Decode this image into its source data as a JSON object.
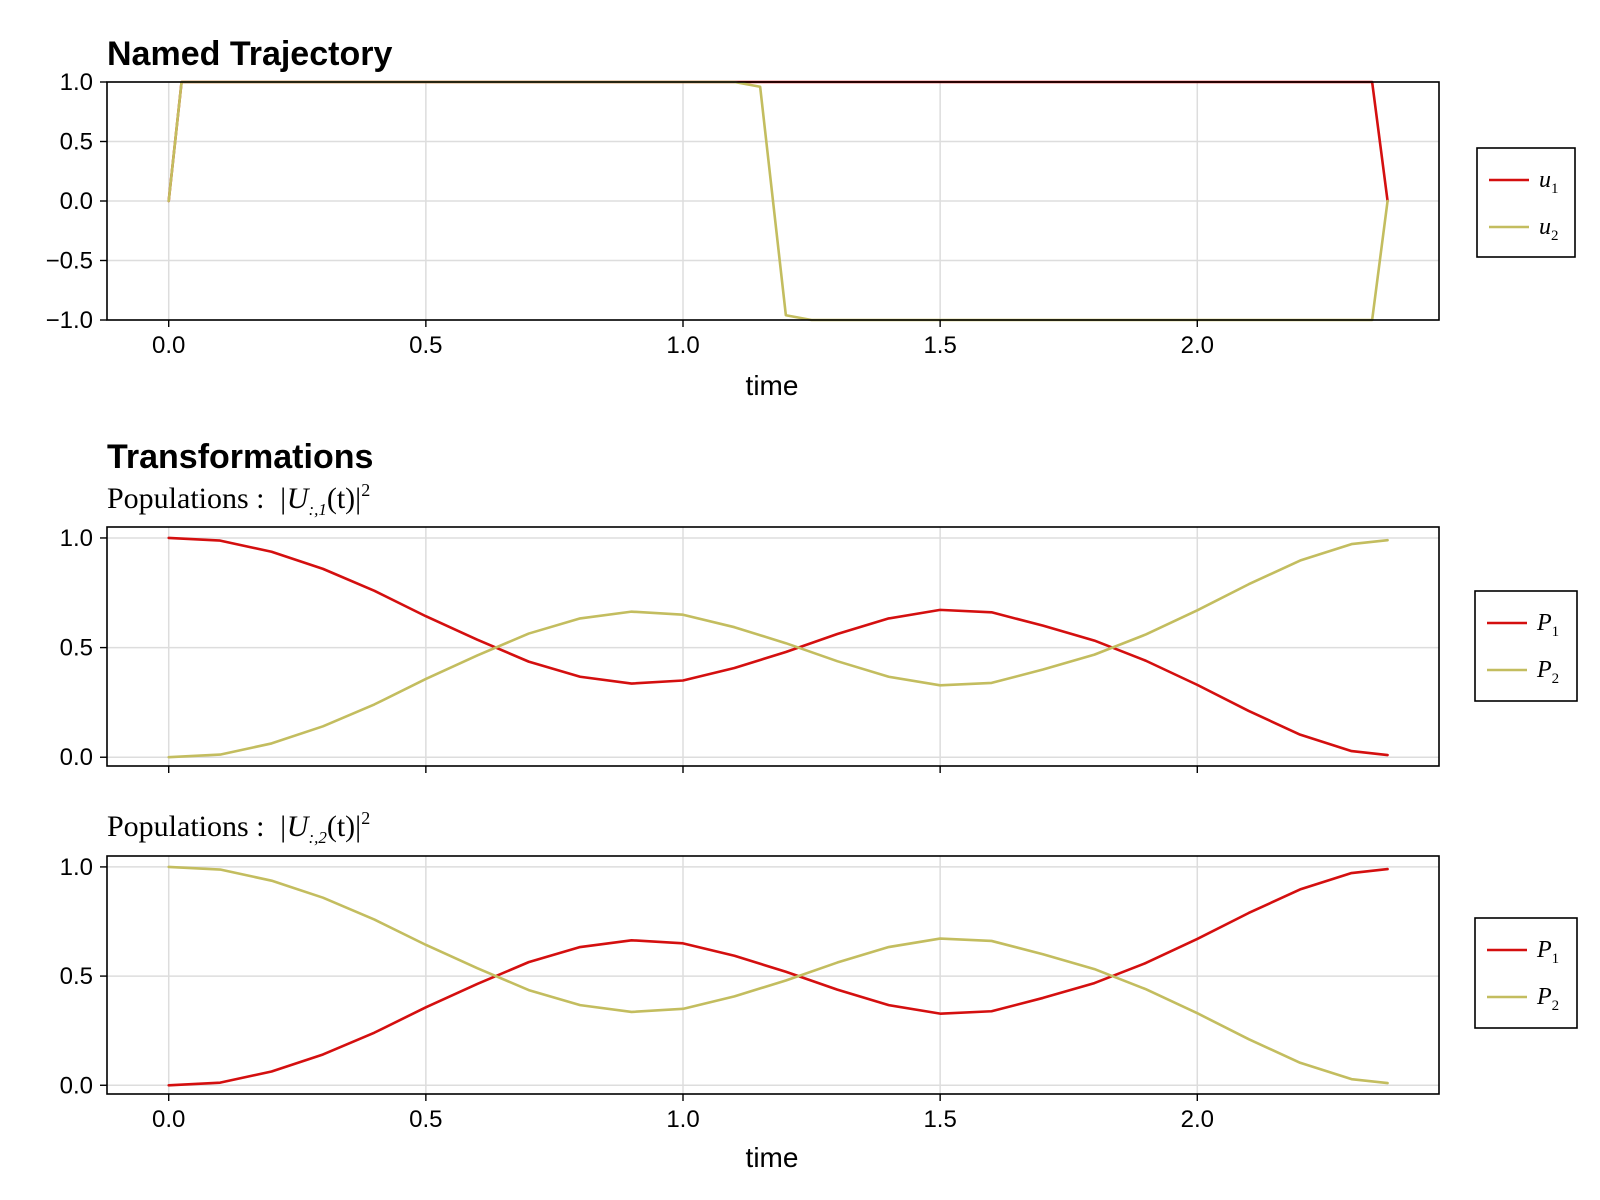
{
  "figure": {
    "section_titles": [
      "Named Trajectory",
      "Transformations"
    ]
  },
  "colors": {
    "red": "#d40f0f",
    "olive": "#c3bd5f"
  },
  "chart_data": [
    {
      "type": "line",
      "title": "Named Trajectory",
      "xlabel": "time",
      "xlim": [
        -0.12,
        2.47
      ],
      "ylim": [
        -1.0,
        1.0
      ],
      "xticks": [
        0.0,
        0.5,
        1.0,
        1.5,
        2.0
      ],
      "xtick_labels": [
        "0.0",
        "0.5",
        "1.0",
        "1.5",
        "2.0"
      ],
      "yticks": [
        1.0,
        0.5,
        0.0,
        -0.5,
        -1.0
      ],
      "ytick_labels": [
        "1.0",
        "0.5",
        "0.0",
        "−0.5",
        "−1.0"
      ],
      "grid": true,
      "legend": {
        "placement": "right",
        "entries": [
          {
            "base": "u",
            "sub": "1"
          },
          {
            "base": "u",
            "sub": "2"
          }
        ]
      },
      "series": [
        {
          "name": "u1",
          "color": "#d40f0f",
          "x": [
            0.0,
            0.025,
            0.05,
            1.1,
            1.15,
            2.32,
            2.34,
            2.37
          ],
          "y": [
            0.0,
            1.0,
            1.0,
            1.0,
            1.0,
            1.0,
            1.0,
            0.0
          ]
        },
        {
          "name": "u2",
          "color": "#c3bd5f",
          "x": [
            0.0,
            0.025,
            0.05,
            1.1,
            1.15,
            1.2,
            1.25,
            2.32,
            2.34,
            2.37
          ],
          "y": [
            0.0,
            1.0,
            1.0,
            1.0,
            0.96,
            -0.96,
            -1.0,
            -1.0,
            -1.0,
            0.0
          ]
        }
      ]
    },
    {
      "type": "line",
      "title": {
        "base": "Populations :",
        "expr": "|U",
        "sub": ":,1",
        "tail": "(t)|",
        "sup": "2"
      },
      "xlabel": "",
      "xlim": [
        -0.12,
        2.47
      ],
      "ylim": [
        -0.04,
        1.05
      ],
      "xticks": [
        0.0,
        0.5,
        1.0,
        1.5,
        2.0
      ],
      "yticks": [
        1.0,
        0.5,
        0.0
      ],
      "ytick_labels": [
        "1.0",
        "0.5",
        "0.0"
      ],
      "grid": true,
      "legend": {
        "placement": "right",
        "entries": [
          {
            "base": "P",
            "sub": "1"
          },
          {
            "base": "P",
            "sub": "2"
          }
        ]
      },
      "x": [
        0.0,
        0.1,
        0.2,
        0.3,
        0.4,
        0.5,
        0.6,
        0.7,
        0.8,
        0.9,
        1.0,
        1.1,
        1.2,
        1.3,
        1.4,
        1.5,
        1.6,
        1.7,
        1.8,
        1.9,
        2.0,
        2.1,
        2.2,
        2.3,
        2.37
      ],
      "series": [
        {
          "name": "P1",
          "color": "#d40f0f",
          "values": [
            1.0,
            0.988,
            0.937,
            0.859,
            0.759,
            0.643,
            0.536,
            0.436,
            0.367,
            0.336,
            0.35,
            0.407,
            0.48,
            0.562,
            0.633,
            0.672,
            0.661,
            0.6,
            0.532,
            0.44,
            0.33,
            0.211,
            0.103,
            0.028,
            0.01
          ]
        },
        {
          "name": "P2",
          "color": "#c3bd5f",
          "values": [
            0.0,
            0.012,
            0.063,
            0.141,
            0.241,
            0.357,
            0.464,
            0.564,
            0.633,
            0.664,
            0.65,
            0.593,
            0.52,
            0.438,
            0.367,
            0.328,
            0.339,
            0.4,
            0.468,
            0.56,
            0.67,
            0.789,
            0.897,
            0.972,
            0.99
          ]
        }
      ]
    },
    {
      "type": "line",
      "title": {
        "base": "Populations :",
        "expr": "|U",
        "sub": ":,2",
        "tail": "(t)|",
        "sup": "2"
      },
      "xlabel": "time",
      "xlim": [
        -0.12,
        2.47
      ],
      "ylim": [
        -0.04,
        1.05
      ],
      "xticks": [
        0.0,
        0.5,
        1.0,
        1.5,
        2.0
      ],
      "xtick_labels": [
        "0.0",
        "0.5",
        "1.0",
        "1.5",
        "2.0"
      ],
      "yticks": [
        1.0,
        0.5,
        0.0
      ],
      "ytick_labels": [
        "1.0",
        "0.5",
        "0.0"
      ],
      "grid": true,
      "legend": {
        "placement": "right",
        "entries": [
          {
            "base": "P",
            "sub": "1"
          },
          {
            "base": "P",
            "sub": "2"
          }
        ]
      },
      "x": [
        0.0,
        0.1,
        0.2,
        0.3,
        0.4,
        0.5,
        0.6,
        0.7,
        0.8,
        0.9,
        1.0,
        1.1,
        1.2,
        1.3,
        1.4,
        1.5,
        1.6,
        1.7,
        1.8,
        1.9,
        2.0,
        2.1,
        2.2,
        2.3,
        2.37
      ],
      "series": [
        {
          "name": "P1",
          "color": "#d40f0f",
          "values": [
            0.0,
            0.012,
            0.063,
            0.141,
            0.241,
            0.357,
            0.464,
            0.564,
            0.633,
            0.664,
            0.65,
            0.593,
            0.52,
            0.438,
            0.367,
            0.328,
            0.339,
            0.4,
            0.468,
            0.56,
            0.67,
            0.789,
            0.897,
            0.972,
            0.99
          ]
        },
        {
          "name": "P2",
          "color": "#c3bd5f",
          "values": [
            1.0,
            0.988,
            0.937,
            0.859,
            0.759,
            0.643,
            0.536,
            0.436,
            0.367,
            0.336,
            0.35,
            0.407,
            0.48,
            0.562,
            0.633,
            0.672,
            0.661,
            0.6,
            0.532,
            0.44,
            0.33,
            0.211,
            0.103,
            0.028,
            0.01
          ]
        }
      ]
    }
  ]
}
